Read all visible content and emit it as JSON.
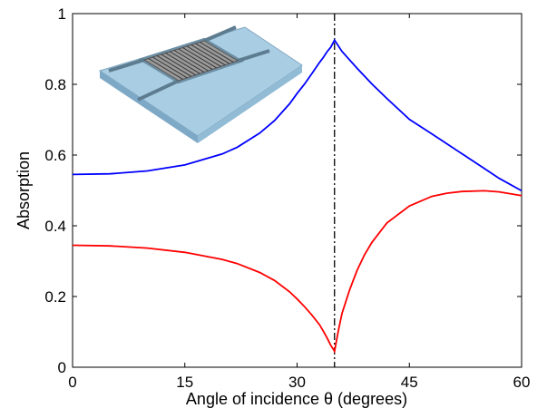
{
  "chart_data": {
    "type": "line",
    "title": "",
    "xlabel": "Angle of incidence θ (degrees)",
    "ylabel": "Absorption",
    "xlim": [
      0,
      60
    ],
    "ylim": [
      0,
      1
    ],
    "xticks": [
      0,
      15,
      30,
      45,
      60
    ],
    "yticks": [
      0,
      0.2,
      0.4,
      0.6,
      0.8,
      1
    ],
    "ytick_labels": [
      "0",
      "0.2",
      "0.4",
      "0.6",
      "0.8",
      "1"
    ],
    "grid": false,
    "vertical_line": {
      "x": 35,
      "style": "dash-dot",
      "color": "#000000"
    },
    "inset": "device-schematic",
    "series": [
      {
        "color": "#0000ff",
        "x": [
          0,
          5,
          10,
          15,
          20,
          22,
          25,
          27,
          29,
          30,
          31,
          32,
          33,
          33.5,
          34,
          34.5,
          35,
          36,
          38,
          40,
          42,
          45,
          48,
          50,
          52,
          55,
          57,
          60
        ],
        "y": [
          0.545,
          0.547,
          0.555,
          0.572,
          0.603,
          0.622,
          0.662,
          0.698,
          0.745,
          0.774,
          0.801,
          0.831,
          0.862,
          0.876,
          0.892,
          0.905,
          0.925,
          0.893,
          0.846,
          0.801,
          0.76,
          0.701,
          0.66,
          0.632,
          0.604,
          0.562,
          0.534,
          0.499
        ]
      },
      {
        "color": "#ff0000",
        "x": [
          0,
          5,
          10,
          15,
          20,
          22,
          25,
          27,
          29,
          30,
          31,
          32,
          33,
          33.5,
          34,
          34.5,
          35,
          35.5,
          36,
          37,
          38,
          39,
          40,
          42,
          45,
          48,
          50,
          52,
          55,
          57,
          60
        ],
        "y": [
          0.345,
          0.343,
          0.337,
          0.325,
          0.305,
          0.293,
          0.268,
          0.245,
          0.213,
          0.193,
          0.171,
          0.147,
          0.12,
          0.102,
          0.083,
          0.062,
          0.045,
          0.102,
          0.152,
          0.218,
          0.273,
          0.318,
          0.353,
          0.408,
          0.456,
          0.483,
          0.492,
          0.497,
          0.499,
          0.496,
          0.485
        ]
      }
    ]
  }
}
